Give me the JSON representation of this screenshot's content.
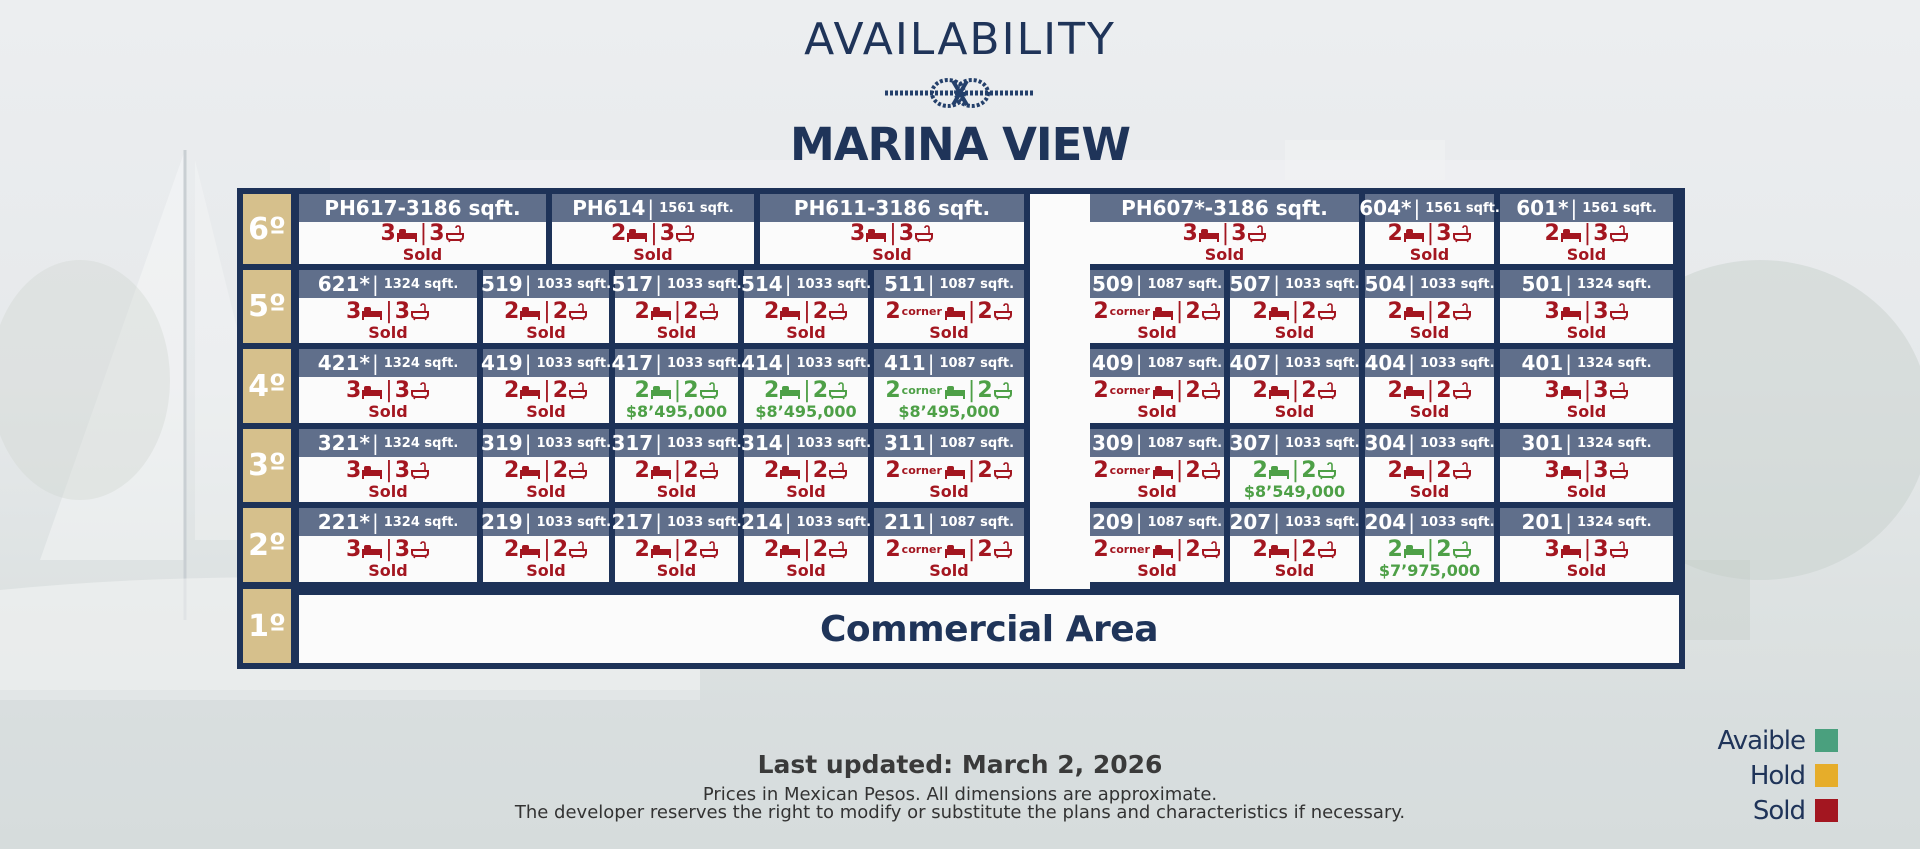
{
  "header": {
    "title": "AVAILABILITY",
    "subtitle": "MARINA VIEW"
  },
  "floors": [
    "6º",
    "5º",
    "4º",
    "3º",
    "2º",
    "1º"
  ],
  "commercial_label": "Commercial Area",
  "colors": {
    "available": "#4ea047",
    "hold": "#e6ad2a",
    "sold": "#a31620",
    "navy": "#1d3258"
  },
  "rows": [
    {
      "floor": "6º",
      "units": [
        {
          "name": "PH617",
          "sep": " - ",
          "sqft": "3186 sqft.",
          "big": true,
          "beds": "3",
          "corner": "",
          "baths": "3",
          "status": "sold",
          "status_text": "Sold"
        },
        {
          "name": "PH614",
          "sep": "|",
          "sqft": "1561 sqft.",
          "big": false,
          "beds": "2",
          "corner": "",
          "baths": "3",
          "status": "sold",
          "status_text": "Sold"
        },
        {
          "name": "PH611",
          "sep": " - ",
          "sqft": "3186 sqft.",
          "big": true,
          "beds": "3",
          "corner": "",
          "baths": "3",
          "status": "sold",
          "status_text": "Sold"
        },
        {
          "name": "PH607*",
          "sep": " - ",
          "sqft": "3186 sqft.",
          "big": true,
          "beds": "3",
          "corner": "",
          "baths": "3",
          "status": "sold",
          "status_text": "Sold"
        },
        {
          "name": "604*",
          "sep": "|",
          "sqft": "1561 sqft.",
          "big": false,
          "beds": "2",
          "corner": "",
          "baths": "3",
          "status": "sold",
          "status_text": "Sold"
        },
        {
          "name": "601*",
          "sep": "|",
          "sqft": "1561 sqft.",
          "big": false,
          "beds": "2",
          "corner": "",
          "baths": "3",
          "status": "sold",
          "status_text": "Sold"
        }
      ]
    },
    {
      "floor": "5º",
      "units": [
        {
          "name": "621*",
          "sep": "|",
          "sqft": "1324 sqft.",
          "beds": "3",
          "corner": "",
          "baths": "3",
          "status": "sold",
          "status_text": "Sold"
        },
        {
          "name": "519",
          "sep": "|",
          "sqft": "1033 sqft.",
          "beds": "2",
          "corner": "",
          "baths": "2",
          "status": "sold",
          "status_text": "Sold"
        },
        {
          "name": "517",
          "sep": "|",
          "sqft": "1033 sqft.",
          "beds": "2",
          "corner": "",
          "baths": "2",
          "status": "sold",
          "status_text": "Sold"
        },
        {
          "name": "514",
          "sep": "|",
          "sqft": "1033 sqft.",
          "beds": "2",
          "corner": "",
          "baths": "2",
          "status": "sold",
          "status_text": "Sold"
        },
        {
          "name": "511",
          "sep": "|",
          "sqft": "1087 sqft.",
          "beds": "2",
          "corner": "corner",
          "baths": "2",
          "status": "sold",
          "status_text": "Sold"
        },
        {
          "name": "509",
          "sep": "|",
          "sqft": "1087 sqft.",
          "beds": "2",
          "corner": "corner",
          "baths": "2",
          "status": "sold",
          "status_text": "Sold"
        },
        {
          "name": "507",
          "sep": "|",
          "sqft": "1033 sqft.",
          "beds": "2",
          "corner": "",
          "baths": "2",
          "status": "sold",
          "status_text": "Sold"
        },
        {
          "name": "504",
          "sep": "|",
          "sqft": "1033 sqft.",
          "beds": "2",
          "corner": "",
          "baths": "2",
          "status": "sold",
          "status_text": "Sold"
        },
        {
          "name": "501",
          "sep": "|",
          "sqft": "1324 sqft.",
          "beds": "3",
          "corner": "",
          "baths": "3",
          "status": "sold",
          "status_text": "Sold"
        }
      ]
    },
    {
      "floor": "4º",
      "units": [
        {
          "name": "421*",
          "sep": "|",
          "sqft": "1324 sqft.",
          "beds": "3",
          "corner": "",
          "baths": "3",
          "status": "sold",
          "status_text": "Sold"
        },
        {
          "name": "419",
          "sep": "|",
          "sqft": "1033 sqft.",
          "beds": "2",
          "corner": "",
          "baths": "2",
          "status": "sold",
          "status_text": "Sold"
        },
        {
          "name": "417",
          "sep": "|",
          "sqft": "1033 sqft.",
          "beds": "2",
          "corner": "",
          "baths": "2",
          "status": "avail",
          "status_text": "$8’495,000"
        },
        {
          "name": "414",
          "sep": "|",
          "sqft": "1033 sqft.",
          "beds": "2",
          "corner": "",
          "baths": "2",
          "status": "avail",
          "status_text": "$8’495,000"
        },
        {
          "name": "411",
          "sep": "|",
          "sqft": "1087 sqft.",
          "beds": "2",
          "corner": "corner",
          "baths": "2",
          "status": "avail",
          "status_text": "$8’495,000"
        },
        {
          "name": "409",
          "sep": "|",
          "sqft": "1087 sqft.",
          "beds": "2",
          "corner": "corner",
          "baths": "2",
          "status": "sold",
          "status_text": "Sold"
        },
        {
          "name": "407",
          "sep": "|",
          "sqft": "1033 sqft.",
          "beds": "2",
          "corner": "",
          "baths": "2",
          "status": "sold",
          "status_text": "Sold"
        },
        {
          "name": "404",
          "sep": "|",
          "sqft": "1033 sqft.",
          "beds": "2",
          "corner": "",
          "baths": "2",
          "status": "sold",
          "status_text": "Sold"
        },
        {
          "name": "401",
          "sep": "|",
          "sqft": "1324 sqft.",
          "beds": "3",
          "corner": "",
          "baths": "3",
          "status": "sold",
          "status_text": "Sold"
        }
      ]
    },
    {
      "floor": "3º",
      "units": [
        {
          "name": "321*",
          "sep": "|",
          "sqft": "1324 sqft.",
          "beds": "3",
          "corner": "",
          "baths": "3",
          "status": "sold",
          "status_text": "Sold"
        },
        {
          "name": "319",
          "sep": "|",
          "sqft": "1033 sqft.",
          "beds": "2",
          "corner": "",
          "baths": "2",
          "status": "sold",
          "status_text": "Sold"
        },
        {
          "name": "317",
          "sep": "|",
          "sqft": "1033 sqft.",
          "beds": "2",
          "corner": "",
          "baths": "2",
          "status": "sold",
          "status_text": "Sold"
        },
        {
          "name": "314",
          "sep": "|",
          "sqft": "1033 sqft.",
          "beds": "2",
          "corner": "",
          "baths": "2",
          "status": "sold",
          "status_text": "Sold"
        },
        {
          "name": "311",
          "sep": "|",
          "sqft": "1087 sqft.",
          "beds": "2",
          "corner": "corner",
          "baths": "2",
          "status": "sold",
          "status_text": "Sold"
        },
        {
          "name": "309",
          "sep": "|",
          "sqft": "1087 sqft.",
          "beds": "2",
          "corner": "corner",
          "baths": "2",
          "status": "sold",
          "status_text": "Sold"
        },
        {
          "name": "307",
          "sep": "|",
          "sqft": "1033 sqft.",
          "beds": "2",
          "corner": "",
          "baths": "2",
          "status": "avail",
          "status_text": "$8’549,000"
        },
        {
          "name": "304",
          "sep": "|",
          "sqft": "1033 sqft.",
          "beds": "2",
          "corner": "",
          "baths": "2",
          "status": "sold",
          "status_text": "Sold"
        },
        {
          "name": "301",
          "sep": "|",
          "sqft": "1324 sqft.",
          "beds": "3",
          "corner": "",
          "baths": "3",
          "status": "sold",
          "status_text": "Sold"
        }
      ]
    },
    {
      "floor": "2º",
      "units": [
        {
          "name": "221*",
          "sep": "|",
          "sqft": "1324 sqft.",
          "beds": "3",
          "corner": "",
          "baths": "3",
          "status": "sold",
          "status_text": "Sold"
        },
        {
          "name": "219",
          "sep": "|",
          "sqft": "1033 sqft.",
          "beds": "2",
          "corner": "",
          "baths": "2",
          "status": "sold",
          "status_text": "Sold"
        },
        {
          "name": "217",
          "sep": "|",
          "sqft": "1033 sqft.",
          "beds": "2",
          "corner": "",
          "baths": "2",
          "status": "sold",
          "status_text": "Sold"
        },
        {
          "name": "214",
          "sep": "|",
          "sqft": "1033 sqft.",
          "beds": "2",
          "corner": "",
          "baths": "2",
          "status": "sold",
          "status_text": "Sold"
        },
        {
          "name": "211",
          "sep": "|",
          "sqft": "1087 sqft.",
          "beds": "2",
          "corner": "corner",
          "baths": "2",
          "status": "sold",
          "status_text": "Sold"
        },
        {
          "name": "209",
          "sep": "|",
          "sqft": "1087 sqft.",
          "beds": "2",
          "corner": "corner",
          "baths": "2",
          "status": "sold",
          "status_text": "Sold"
        },
        {
          "name": "207",
          "sep": "|",
          "sqft": "1033 sqft.",
          "beds": "2",
          "corner": "",
          "baths": "2",
          "status": "sold",
          "status_text": "Sold"
        },
        {
          "name": "204",
          "sep": "|",
          "sqft": "1033 sqft.",
          "beds": "2",
          "corner": "",
          "baths": "2",
          "status": "avail",
          "status_text": "$7’975,000"
        },
        {
          "name": "201",
          "sep": "|",
          "sqft": "1324 sqft.",
          "beds": "3",
          "corner": "",
          "baths": "3",
          "status": "sold",
          "status_text": "Sold"
        }
      ]
    }
  ],
  "footer": {
    "updated": "Last updated: March 2, 2026",
    "note1": "Prices in Mexican Pesos. All dimensions are approximate.",
    "note2": "The developer reserves the right to modify or substitute the plans and characteristics if necessary."
  },
  "legend": [
    {
      "label": "Avaible",
      "color": "#4aa07e"
    },
    {
      "label": "Hold",
      "color": "#e6ad2a"
    },
    {
      "label": "Sold",
      "color": "#a31620"
    }
  ]
}
